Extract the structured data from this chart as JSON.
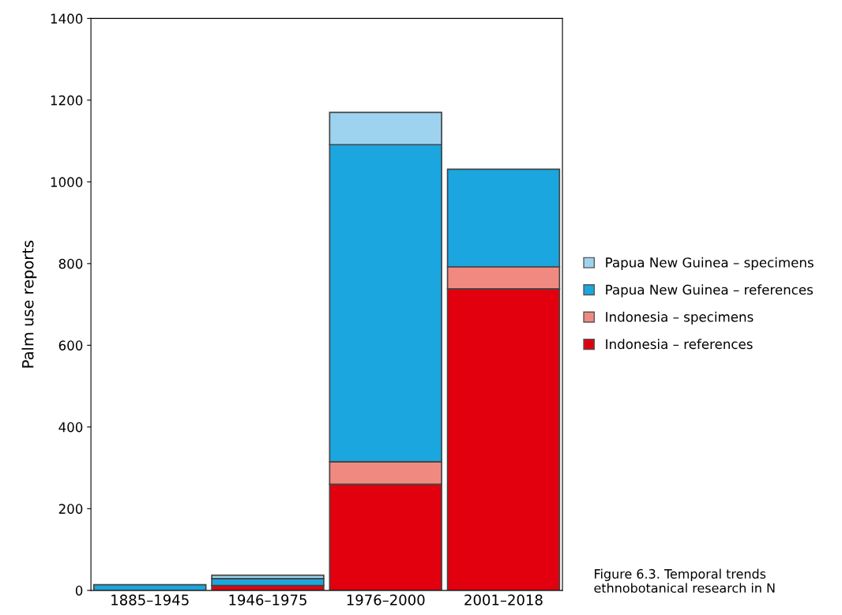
{
  "chart_data": {
    "type": "bar",
    "stacked": true,
    "ylabel": "Palm use reports",
    "categories": [
      "1885–1945",
      "1946–1975",
      "1976–2000",
      "2001–2018"
    ],
    "series": [
      {
        "name": "Indonesia – references",
        "color": "#e2000f",
        "values": [
          0,
          12,
          260,
          738
        ]
      },
      {
        "name": "Indonesia – specimens",
        "color": "#f08a80",
        "values": [
          0,
          0,
          55,
          54
        ]
      },
      {
        "name": "Papua New Guinea – references",
        "color": "#1ba6e0",
        "values": [
          14,
          17,
          776,
          239
        ]
      },
      {
        "name": "Papua New Guinea – specimens",
        "color": "#9dd3ef",
        "values": [
          0,
          8,
          79,
          0
        ]
      }
    ],
    "ylim": [
      0,
      1400
    ],
    "yticks": [
      0,
      200,
      400,
      600,
      800,
      1000,
      1200,
      1400
    ],
    "grid": false,
    "legend": "right",
    "annotations": [
      "Figure 6.3. Temporal trends ethnobotanical research in N"
    ]
  }
}
